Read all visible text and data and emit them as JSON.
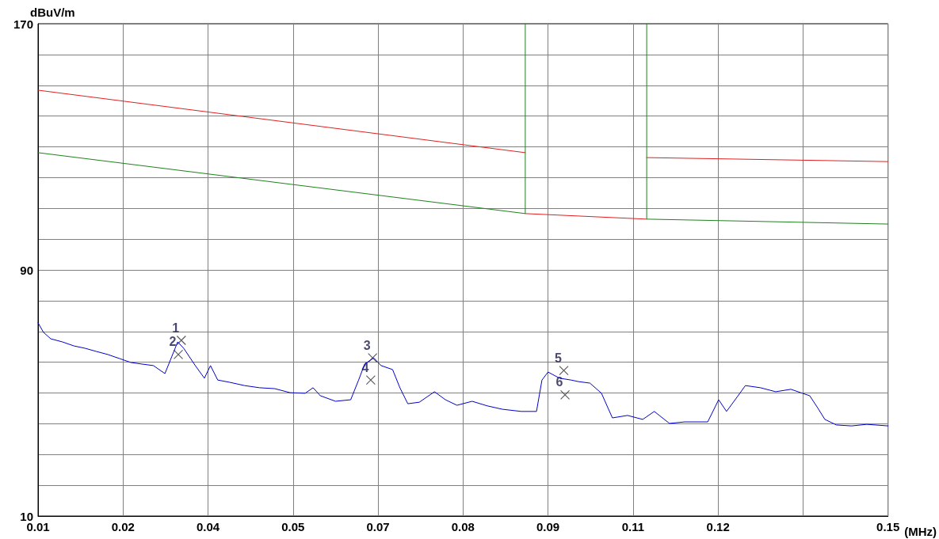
{
  "chart_data": {
    "type": "line",
    "xlabel": "(MHz)",
    "ylabel": "dBuV/m",
    "xlim": [
      0.01,
      0.15
    ],
    "ylim": [
      10,
      170
    ],
    "xticks": [
      0.01,
      {
        "value": 0.024,
        "label": "0.02"
      },
      {
        "value": 0.038,
        "label": "0.04"
      },
      {
        "value": 0.052,
        "label": "0.05"
      },
      {
        "value": 0.066,
        "label": "0.07"
      },
      {
        "value": 0.08,
        "label": "0.08"
      },
      {
        "value": 0.094,
        "label": "0.09"
      },
      {
        "value": 0.108,
        "label": "0.11"
      },
      {
        "value": 0.122,
        "label": "0.12"
      },
      {
        "value": 0.136,
        "label": null
      },
      0.15
    ],
    "yticks": [
      10,
      {
        "value": 20,
        "label": null
      },
      {
        "value": 30,
        "label": null
      },
      {
        "value": 40,
        "label": null
      },
      {
        "value": 50,
        "label": null
      },
      {
        "value": 60,
        "label": null
      },
      {
        "value": 70,
        "label": null
      },
      {
        "value": 80,
        "label": null
      },
      90,
      {
        "value": 100,
        "label": null
      },
      {
        "value": 110,
        "label": null
      },
      {
        "value": 120,
        "label": null
      },
      {
        "value": 130,
        "label": null
      },
      {
        "value": 140,
        "label": null
      },
      {
        "value": 150,
        "label": null
      },
      {
        "value": 160,
        "label": null
      },
      170
    ],
    "grid": true,
    "marker": "none",
    "series": [
      {
        "color": "#e02020",
        "x": [
          0.01,
          0.09025
        ],
        "values": [
          148.4,
          128.1
        ]
      },
      {
        "color": "#e02020",
        "x": [
          0.09025,
          0.11025
        ],
        "values": [
          108.3,
          106.5
        ]
      },
      {
        "color": "#e02020",
        "x": [
          0.11025,
          0.15
        ],
        "values": [
          126.5,
          125.2
        ]
      },
      {
        "color": "#208020",
        "x": [
          0.01,
          0.09025,
          0.09025
        ],
        "values": [
          128.1,
          108.3,
          170
        ]
      },
      {
        "color": "#208020",
        "x": [
          0.11025,
          0.11025,
          0.15
        ],
        "values": [
          170,
          106.5,
          104.9
        ]
      },
      {
        "color": "#0000cc",
        "x": [
          0.01,
          0.0109,
          0.0121,
          0.014,
          0.0159,
          0.0178,
          0.0196,
          0.0215,
          0.0234,
          0.0253,
          0.0271,
          0.029,
          0.0309,
          0.0318,
          0.033,
          0.034,
          0.0359,
          0.0374,
          0.0384,
          0.0396,
          0.0415,
          0.044,
          0.0465,
          0.049,
          0.0515,
          0.054,
          0.0553,
          0.0565,
          0.059,
          0.0615,
          0.0628,
          0.0638,
          0.0653,
          0.0665,
          0.0684,
          0.0696,
          0.0709,
          0.0728,
          0.0753,
          0.0771,
          0.079,
          0.0815,
          0.084,
          0.0865,
          0.0896,
          0.0921,
          0.093,
          0.094,
          0.0959,
          0.0978,
          0.099,
          0.1009,
          0.1028,
          0.1046,
          0.1071,
          0.1096,
          0.1115,
          0.114,
          0.1165,
          0.1203,
          0.1221,
          0.1234,
          0.1253,
          0.1265,
          0.129,
          0.1315,
          0.134,
          0.1359,
          0.1371,
          0.1384,
          0.1396,
          0.1415,
          0.144,
          0.1465,
          0.15
        ],
        "values": [
          72.8,
          69.7,
          67.6,
          66.6,
          65.3,
          64.5,
          63.5,
          62.5,
          61.2,
          59.9,
          59.4,
          58.9,
          56.3,
          60.7,
          66.6,
          64.5,
          58.9,
          54.8,
          58.9,
          54.2,
          53.5,
          52.4,
          51.7,
          51.4,
          50.1,
          49.9,
          51.7,
          49.1,
          47.3,
          47.8,
          54.2,
          59.4,
          61.4,
          58.9,
          57.6,
          51.7,
          46.5,
          47.0,
          50.4,
          47.8,
          46.0,
          47.3,
          45.8,
          44.7,
          44.0,
          44.0,
          54.2,
          56.8,
          54.8,
          54.2,
          53.7,
          53.2,
          49.9,
          41.9,
          42.7,
          41.4,
          44.0,
          40.1,
          40.6,
          40.6,
          47.8,
          44.0,
          49.1,
          52.4,
          51.7,
          50.4,
          51.2,
          49.9,
          49.1,
          45.2,
          41.4,
          39.6,
          39.3,
          39.8,
          39.3
        ]
      },
      {
        "type": "scatter",
        "marker": "cross",
        "color": "#333333",
        "x": [
          0.0336,
          0.0331,
          0.0651,
          0.0648,
          0.0966,
          0.0968
        ],
        "values": [
          67.1,
          62.5,
          61.4,
          54.2,
          57.3,
          49.4
        ]
      }
    ],
    "annotations": [
      {
        "text": "1",
        "x": 0.0336,
        "y": 67.1
      },
      {
        "text": "2",
        "x": 0.0331,
        "y": 62.5
      },
      {
        "text": "3",
        "x": 0.0651,
        "y": 61.4
      },
      {
        "text": "4",
        "x": 0.0648,
        "y": 54.2
      },
      {
        "text": "5",
        "x": 0.0966,
        "y": 57.3
      },
      {
        "text": "6",
        "x": 0.0968,
        "y": 49.4
      }
    ]
  }
}
